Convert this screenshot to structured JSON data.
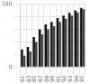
{
  "chart_data": {
    "type": "bar",
    "categories": [
      "81",
      "83",
      "85",
      "87",
      "89",
      "90",
      "91",
      "92",
      "93",
      "94",
      "95"
    ],
    "series": [
      {
        "color": "#111111",
        "values": [
          28,
          32,
          48,
          60,
          68,
          72,
          78,
          82,
          86,
          90,
          94
        ]
      },
      {
        "color": "#444444",
        "values": [
          18,
          25,
          40,
          52,
          60,
          65,
          72,
          77,
          82,
          87,
          92
        ]
      }
    ],
    "ylim": [
      0,
      100
    ],
    "yticks": [
      0,
      {
        "value": 20,
        "label": ""
      },
      {
        "value": 40,
        "label": ""
      },
      {
        "value": 60,
        "label": ""
      },
      {
        "value": 80,
        "label": ""
      },
      100
    ],
    "grid": true
  }
}
